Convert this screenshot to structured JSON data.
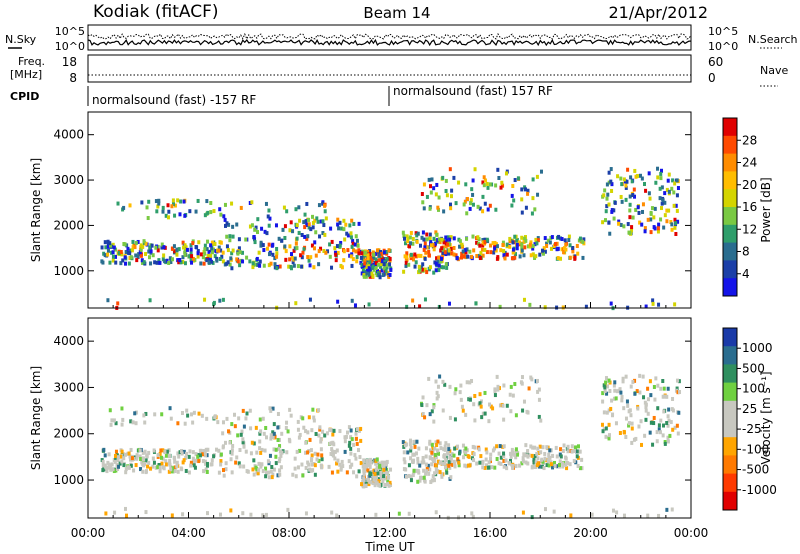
{
  "header": {
    "radar": "Kodiak (fitACF)",
    "beam": "Beam 14",
    "date": "21/Apr/2012"
  },
  "top_panels": {
    "nsky_label": "N.Sky",
    "nsearch_label": "N.Search",
    "noise_ticks_left": [
      "10^5",
      "10^0"
    ],
    "noise_ticks_right": [
      "10^5",
      "10^0"
    ],
    "freq_label_1": "Freq.",
    "freq_label_2": "[MHz]",
    "freq_ticks": [
      "18",
      "8"
    ],
    "nave_label": "Nave",
    "nave_ticks": [
      "60",
      "0"
    ],
    "cpid_label": "CPID",
    "cpid_1": "normalsound (fast) -157 RF",
    "cpid_2": "normalsound (fast) 157 RF"
  },
  "chart_data": [
    {
      "type": "heatmap",
      "name": "power",
      "ylabel": "Slant Range [km]",
      "yticks": [
        "1000",
        "2000",
        "3000",
        "4000"
      ],
      "ylim": [
        180,
        4500
      ],
      "xlabel": "Time UT",
      "xticks": [
        "00:00",
        "04:00",
        "08:00",
        "12:00",
        "16:00",
        "20:00",
        "00:00"
      ],
      "xlim_hours": [
        0,
        24
      ],
      "colorbar_label": "Power [dB]",
      "colorbar_ticks": [
        "28",
        "24",
        "20",
        "16",
        "12",
        "8",
        "4"
      ],
      "colorbar_colors": [
        "#e00000",
        "#ff4a00",
        "#ff8c00",
        "#ffbd00",
        "#d4d400",
        "#7ac943",
        "#2f9e6b",
        "#2a6d8f",
        "#1b3fa8",
        "#1414e8"
      ]
    },
    {
      "type": "heatmap",
      "name": "velocity",
      "ylabel": "Slant Range [km]",
      "yticks": [
        "1000",
        "2000",
        "3000",
        "4000"
      ],
      "ylim": [
        180,
        4500
      ],
      "xlabel": "Time UT",
      "xticks": [
        "00:00",
        "04:00",
        "08:00",
        "12:00",
        "16:00",
        "20:00",
        "00:00"
      ],
      "xlim_hours": [
        0,
        24
      ],
      "colorbar_label": "Velocity [m s⁻¹]",
      "colorbar_ticks": [
        "1000",
        "500",
        "100",
        "25",
        "-25",
        "-100",
        "-500",
        "-1000"
      ],
      "colorbar_colors": [
        "#1a3aa8",
        "#2a6d8f",
        "#2f8f5f",
        "#6fd040",
        "#c8c8c0",
        "#c8c8c0",
        "#ffa500",
        "#ff7a00",
        "#ff3a00",
        "#e00000"
      ]
    }
  ]
}
